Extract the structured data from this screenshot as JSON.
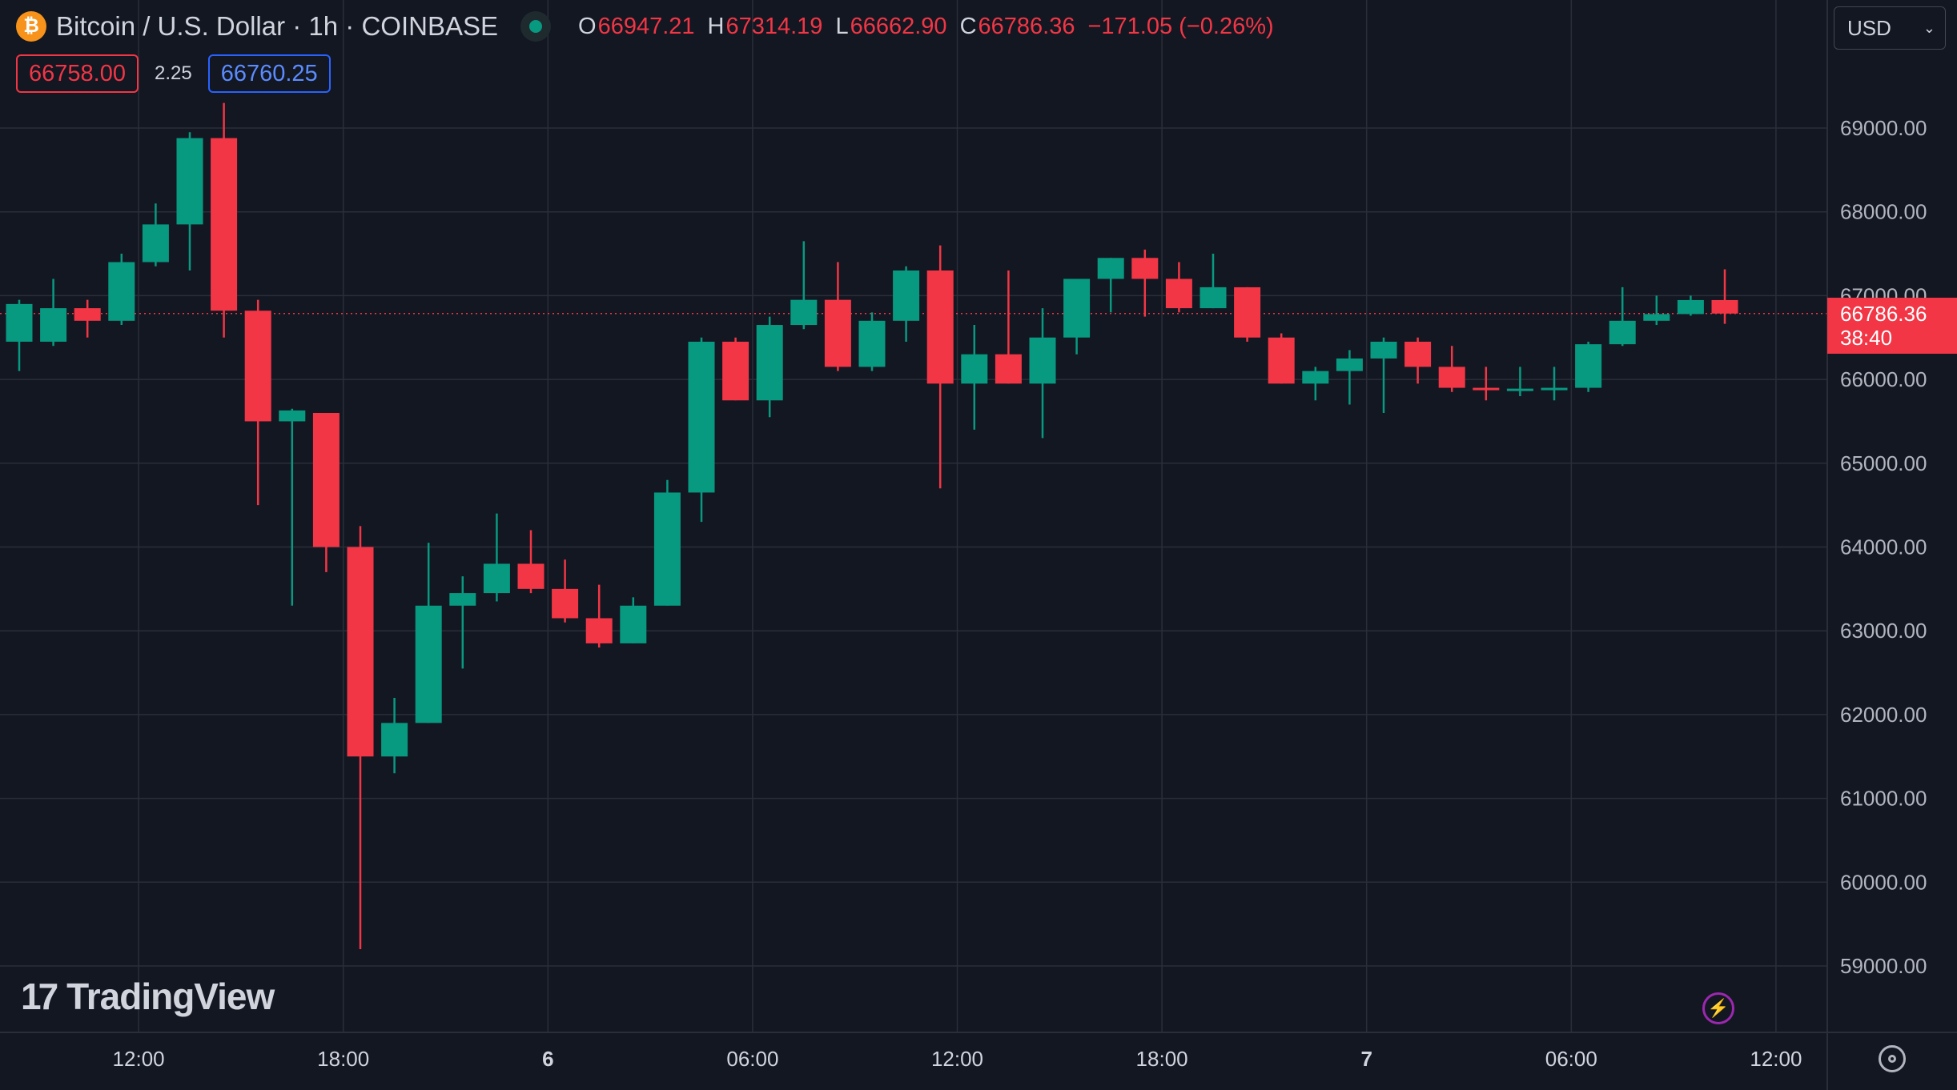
{
  "header": {
    "title": "Bitcoin / U.S. Dollar · 1h · COINBASE",
    "coin_symbol": "₿",
    "ohlc": {
      "o_label": "O",
      "o": "66947.21",
      "h_label": "H",
      "h": "67314.19",
      "l_label": "L",
      "l": "66662.90",
      "c_label": "C",
      "c": "66786.36",
      "change": "−171.05 (−0.26%)"
    }
  },
  "quotes": {
    "sell": "66758.00",
    "spread": "2.25",
    "buy": "66760.25"
  },
  "currency": {
    "label": "USD",
    "chevron": "⌄"
  },
  "current_price": {
    "value": "66786.36",
    "countdown": "38:40"
  },
  "branding": {
    "logo_mark": "17",
    "logo_text": "TradingView"
  },
  "colors": {
    "up": "#089981",
    "down": "#f23645",
    "background": "#131722",
    "grid": "#2a2e39"
  },
  "chart_data": {
    "type": "candlestick",
    "title": "Bitcoin / U.S. Dollar · 1h · COINBASE",
    "ylim": [
      58250,
      70000
    ],
    "yticks": [
      59000,
      60000,
      61000,
      62000,
      63000,
      64000,
      65000,
      66000,
      67000,
      68000,
      69000
    ],
    "ytick_labels": [
      "59000.00",
      "60000.00",
      "61000.00",
      "62000.00",
      "63000.00",
      "64000.00",
      "65000.00",
      "66000.00",
      "67000.00",
      "68000.00",
      "69000.00"
    ],
    "xticks": [
      {
        "label": "12:00",
        "bar": 3.5,
        "bold": false
      },
      {
        "label": "18:00",
        "bar": 9.5,
        "bold": false
      },
      {
        "label": "6",
        "bar": 15.5,
        "bold": true
      },
      {
        "label": "06:00",
        "bar": 21.5,
        "bold": false
      },
      {
        "label": "12:00",
        "bar": 27.5,
        "bold": false
      },
      {
        "label": "18:00",
        "bar": 33.5,
        "bold": false
      },
      {
        "label": "7",
        "bar": 39.5,
        "bold": true
      },
      {
        "label": "06:00",
        "bar": 45.5,
        "bold": false
      },
      {
        "label": "12:00",
        "bar": 51.5,
        "bold": false
      }
    ],
    "grid": true,
    "last_price": 66786.36,
    "candles": [
      {
        "o": 66450,
        "h": 66950,
        "l": 66100,
        "c": 66900
      },
      {
        "o": 66450,
        "h": 67200,
        "l": 66400,
        "c": 66850
      },
      {
        "o": 66850,
        "h": 66950,
        "l": 66500,
        "c": 66700
      },
      {
        "o": 66700,
        "h": 67500,
        "l": 66650,
        "c": 67400
      },
      {
        "o": 67400,
        "h": 68100,
        "l": 67350,
        "c": 67850
      },
      {
        "o": 67850,
        "h": 68950,
        "l": 67300,
        "c": 68880
      },
      {
        "o": 68880,
        "h": 69300,
        "l": 66500,
        "c": 66820
      },
      {
        "o": 66820,
        "h": 66950,
        "l": 64500,
        "c": 65500
      },
      {
        "o": 65500,
        "h": 65650,
        "l": 63300,
        "c": 65630
      },
      {
        "o": 65600,
        "h": 65600,
        "l": 63700,
        "c": 64000
      },
      {
        "o": 64000,
        "h": 64250,
        "l": 59200,
        "c": 61500
      },
      {
        "o": 61500,
        "h": 62200,
        "l": 61300,
        "c": 61900
      },
      {
        "o": 61900,
        "h": 64050,
        "l": 61900,
        "c": 63300
      },
      {
        "o": 63300,
        "h": 63650,
        "l": 62550,
        "c": 63450
      },
      {
        "o": 63450,
        "h": 64400,
        "l": 63350,
        "c": 63800
      },
      {
        "o": 63800,
        "h": 64200,
        "l": 63450,
        "c": 63500
      },
      {
        "o": 63500,
        "h": 63850,
        "l": 63100,
        "c": 63150
      },
      {
        "o": 63150,
        "h": 63550,
        "l": 62800,
        "c": 62850
      },
      {
        "o": 62850,
        "h": 63400,
        "l": 62850,
        "c": 63300
      },
      {
        "o": 63300,
        "h": 64800,
        "l": 63300,
        "c": 64650
      },
      {
        "o": 64650,
        "h": 66500,
        "l": 64300,
        "c": 66450
      },
      {
        "o": 66450,
        "h": 66500,
        "l": 65750,
        "c": 65750
      },
      {
        "o": 65750,
        "h": 66750,
        "l": 65550,
        "c": 66650
      },
      {
        "o": 66650,
        "h": 67650,
        "l": 66600,
        "c": 66950
      },
      {
        "o": 66950,
        "h": 67400,
        "l": 66100,
        "c": 66150
      },
      {
        "o": 66150,
        "h": 66800,
        "l": 66100,
        "c": 66700
      },
      {
        "o": 66700,
        "h": 67350,
        "l": 66450,
        "c": 67300
      },
      {
        "o": 67300,
        "h": 67600,
        "l": 64700,
        "c": 65950
      },
      {
        "o": 65950,
        "h": 66650,
        "l": 65400,
        "c": 66300
      },
      {
        "o": 66300,
        "h": 67300,
        "l": 65950,
        "c": 65950
      },
      {
        "o": 65950,
        "h": 66850,
        "l": 65300,
        "c": 66500
      },
      {
        "o": 66500,
        "h": 67200,
        "l": 66300,
        "c": 67200
      },
      {
        "o": 67200,
        "h": 67450,
        "l": 66800,
        "c": 67450
      },
      {
        "o": 67450,
        "h": 67550,
        "l": 66750,
        "c": 67200
      },
      {
        "o": 67200,
        "h": 67400,
        "l": 66800,
        "c": 66850
      },
      {
        "o": 66850,
        "h": 67500,
        "l": 66850,
        "c": 67100
      },
      {
        "o": 67100,
        "h": 67100,
        "l": 66450,
        "c": 66500
      },
      {
        "o": 66500,
        "h": 66550,
        "l": 65950,
        "c": 65950
      },
      {
        "o": 65950,
        "h": 66150,
        "l": 65750,
        "c": 66100
      },
      {
        "o": 66100,
        "h": 66350,
        "l": 65700,
        "c": 66250
      },
      {
        "o": 66250,
        "h": 66500,
        "l": 65600,
        "c": 66450
      },
      {
        "o": 66450,
        "h": 66500,
        "l": 65950,
        "c": 66150
      },
      {
        "o": 66150,
        "h": 66400,
        "l": 65850,
        "c": 65900
      },
      {
        "o": 65900,
        "h": 66150,
        "l": 65750,
        "c": 65880
      },
      {
        "o": 65870,
        "h": 66150,
        "l": 65800,
        "c": 65890
      },
      {
        "o": 65880,
        "h": 66150,
        "l": 65750,
        "c": 65900
      },
      {
        "o": 65900,
        "h": 66450,
        "l": 65850,
        "c": 66420
      },
      {
        "o": 66420,
        "h": 67100,
        "l": 66400,
        "c": 66700
      },
      {
        "o": 66700,
        "h": 67000,
        "l": 66650,
        "c": 66780
      },
      {
        "o": 66780,
        "h": 67000,
        "l": 66760,
        "c": 66947
      },
      {
        "o": 66947,
        "h": 67314,
        "l": 66663,
        "c": 66786
      }
    ]
  }
}
